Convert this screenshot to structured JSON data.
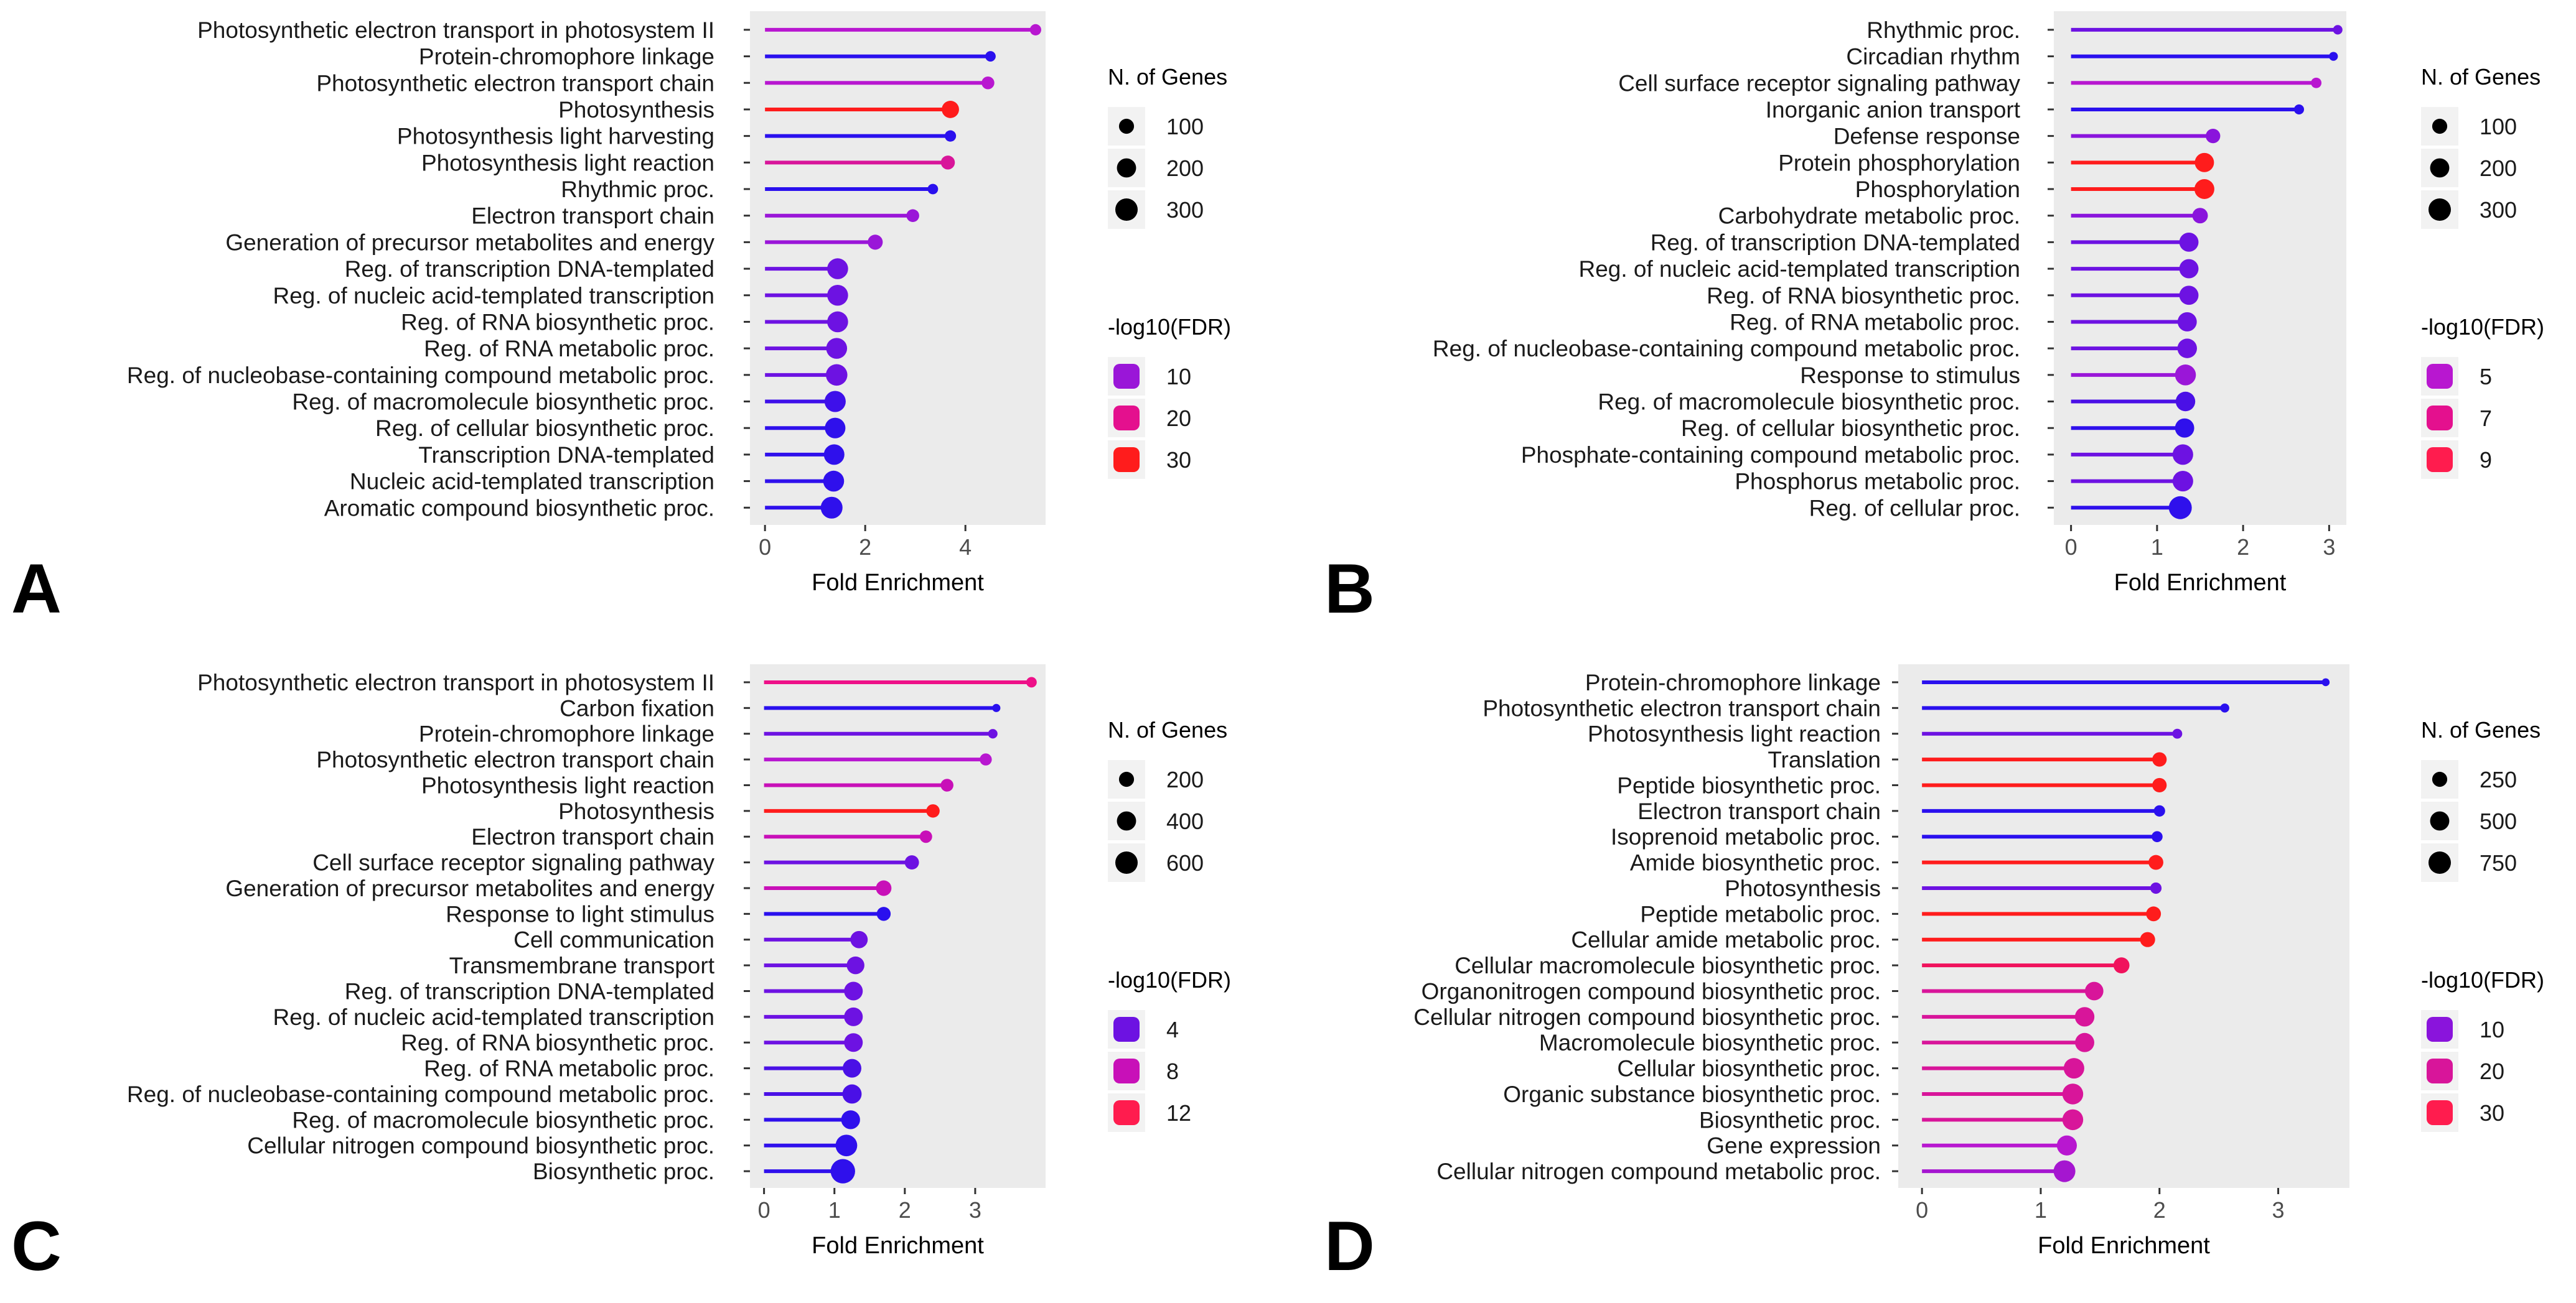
{
  "figure": {
    "x_axis_title": "Fold Enrichment",
    "size_legend_title": "N. of Genes",
    "color_legend_title": "-log10(FDR)"
  },
  "chart_data": [
    {
      "panel": "A",
      "type": "lollipop",
      "xlabel": "Fold Enrichment",
      "xlim": [
        -0.3,
        5.6
      ],
      "xticks": [
        "0",
        "2",
        "4"
      ],
      "xtick_values": [
        0,
        2,
        4
      ],
      "size_legend": {
        "title": "N. of Genes",
        "labels": [
          "100",
          "200",
          "300"
        ],
        "values": [
          100,
          200,
          300
        ]
      },
      "color_legend": {
        "title": "-log10(FDR)",
        "labels": [
          "10",
          "20",
          "30"
        ],
        "colors": [
          "#9a16d8",
          "#e4108e",
          "#ff1c1c"
        ]
      },
      "categories": [
        "Photosynthetic electron transport in photosystem II",
        "Protein-chromophore linkage",
        "Photosynthetic electron transport chain",
        "Photosynthesis",
        "Photosynthesis light harvesting",
        "Photosynthesis light reaction",
        "Rhythmic proc.",
        "Electron transport chain",
        "Generation of precursor metabolites and energy",
        "Reg. of transcription DNA-templated",
        "Reg. of nucleic acid-templated transcription",
        "Reg. of RNA biosynthetic proc.",
        "Reg. of RNA metabolic proc.",
        "Reg. of nucleobase-containing compound metabolic proc.",
        "Reg. of macromolecule biosynthetic proc.",
        "Reg. of cellular biosynthetic proc.",
        "Transcription DNA-templated",
        "Nucleic acid-templated transcription",
        "Aromatic compound biosynthetic proc."
      ],
      "values": [
        5.4,
        4.5,
        4.45,
        3.7,
        3.7,
        3.65,
        3.35,
        2.95,
        2.2,
        1.45,
        1.45,
        1.45,
        1.43,
        1.43,
        1.4,
        1.4,
        1.38,
        1.37,
        1.33
      ],
      "n_genes": [
        40,
        30,
        60,
        150,
        40,
        80,
        30,
        60,
        100,
        250,
        250,
        250,
        250,
        270,
        260,
        240,
        240,
        250,
        280
      ],
      "colors": [
        "#b817d0",
        "#2a10ee",
        "#b817d0",
        "#ff1c1c",
        "#2a10ee",
        "#d8159a",
        "#2a10ee",
        "#9a16d8",
        "#9a16d8",
        "#6d12e2",
        "#6d12e2",
        "#6d12e2",
        "#6d12e2",
        "#6d12e2",
        "#3e10ea",
        "#2f10ec",
        "#2f10ec",
        "#2f10ec",
        "#2f10ec"
      ]
    },
    {
      "panel": "B",
      "type": "lollipop",
      "xlabel": "Fold Enrichment",
      "xlim": [
        -0.2,
        3.2
      ],
      "xticks": [
        "0",
        "1",
        "2",
        "3"
      ],
      "xtick_values": [
        0,
        1,
        2,
        3
      ],
      "size_legend": {
        "title": "N. of Genes",
        "labels": [
          "100",
          "200",
          "300"
        ],
        "values": [
          100,
          200,
          300
        ]
      },
      "color_legend": {
        "title": "-log10(FDR)",
        "labels": [
          "5",
          "7",
          "9"
        ],
        "colors": [
          "#b817d0",
          "#e4108e",
          "#ff1c4e"
        ]
      },
      "categories": [
        "Rhythmic proc.",
        "Circadian rhythm",
        "Cell surface receptor signaling pathway",
        "Inorganic anion transport",
        "Defense response",
        "Protein phosphorylation",
        "Phosphorylation",
        "Carbohydrate metabolic proc.",
        "Reg. of transcription DNA-templated",
        "Reg. of nucleic acid-templated transcription",
        "Reg. of RNA biosynthetic proc.",
        "Reg. of RNA metabolic proc.",
        "Reg. of nucleobase-containing compound metabolic proc.",
        "Response to stimulus",
        "Reg. of macromolecule biosynthetic proc.",
        "Reg. of cellular biosynthetic proc.",
        "Phosphate-containing compound metabolic proc.",
        "Phosphorus metabolic proc.",
        "Reg. of cellular proc."
      ],
      "values": [
        3.1,
        3.05,
        2.85,
        2.65,
        1.65,
        1.55,
        1.55,
        1.5,
        1.37,
        1.37,
        1.37,
        1.35,
        1.35,
        1.33,
        1.33,
        1.32,
        1.3,
        1.3,
        1.27
      ],
      "n_genes": [
        20,
        15,
        30,
        25,
        90,
        200,
        220,
        110,
        200,
        200,
        200,
        200,
        210,
        250,
        210,
        200,
        240,
        240,
        320
      ],
      "colors": [
        "#6d12e2",
        "#2a10ee",
        "#b817d0",
        "#2a10ee",
        "#8a14dc",
        "#ff1c1c",
        "#ff1c1c",
        "#8a14dc",
        "#6d12e2",
        "#6d12e2",
        "#6d12e2",
        "#6d12e2",
        "#6d12e2",
        "#9a16d8",
        "#4a10e6",
        "#2f10ec",
        "#6d12e2",
        "#6d12e2",
        "#2f10ec"
      ]
    },
    {
      "panel": "C",
      "type": "lollipop",
      "xlabel": "Fold Enrichment",
      "xlim": [
        -0.2,
        4.0
      ],
      "xticks": [
        "0",
        "1",
        "2",
        "3"
      ],
      "xtick_values": [
        0,
        1,
        2,
        3
      ],
      "size_legend": {
        "title": "N. of Genes",
        "labels": [
          "200",
          "400",
          "600"
        ],
        "values": [
          200,
          400,
          600
        ]
      },
      "color_legend": {
        "title": "-log10(FDR)",
        "labels": [
          "4",
          "8",
          "12"
        ],
        "colors": [
          "#6d12e2",
          "#c810b8",
          "#ff1c4e"
        ]
      },
      "categories": [
        "Photosynthetic electron transport in photosystem II",
        "Carbon fixation",
        "Protein-chromophore linkage",
        "Photosynthetic electron transport chain",
        "Photosynthesis light reaction",
        "Photosynthesis",
        "Electron transport chain",
        "Cell surface receptor signaling pathway",
        "Generation of precursor metabolites and energy",
        "Response to light stimulus",
        "Cell communication",
        "Transmembrane transport",
        "Reg. of transcription DNA-templated",
        "Reg. of nucleic acid-templated transcription",
        "Reg. of RNA biosynthetic proc.",
        "Reg. of RNA metabolic proc.",
        "Reg. of nucleobase-containing compound metabolic proc.",
        "Reg. of macromolecule biosynthetic proc.",
        "Cellular nitrogen compound biosynthetic proc.",
        "Biosynthetic proc."
      ],
      "values": [
        3.8,
        3.3,
        3.25,
        3.15,
        2.6,
        2.4,
        2.3,
        2.1,
        1.7,
        1.7,
        1.35,
        1.3,
        1.27,
        1.27,
        1.27,
        1.25,
        1.25,
        1.23,
        1.17,
        1.12
      ],
      "n_genes": [
        60,
        20,
        40,
        100,
        120,
        140,
        110,
        170,
        220,
        160,
        300,
        320,
        370,
        370,
        370,
        370,
        400,
        380,
        550,
        750
      ],
      "colors": [
        "#ee1088",
        "#2a10ee",
        "#6d12e2",
        "#b817d0",
        "#c810b8",
        "#ff1c1c",
        "#c810b8",
        "#6d12e2",
        "#c810b8",
        "#2a10ee",
        "#6d12e2",
        "#6d12e2",
        "#6d12e2",
        "#6d12e2",
        "#6d12e2",
        "#4a10e6",
        "#4a10e6",
        "#2f10ec",
        "#2f10ec",
        "#2f10ec"
      ]
    },
    {
      "panel": "D",
      "type": "lollipop",
      "xlabel": "Fold Enrichment",
      "xlim": [
        -0.2,
        3.6
      ],
      "xticks": [
        "0",
        "1",
        "2",
        "3"
      ],
      "xtick_values": [
        0,
        1,
        2,
        3
      ],
      "size_legend": {
        "title": "N. of Genes",
        "labels": [
          "250",
          "500",
          "750"
        ],
        "values": [
          250,
          500,
          750
        ]
      },
      "color_legend": {
        "title": "-log10(FDR)",
        "labels": [
          "10",
          "20",
          "30"
        ],
        "colors": [
          "#8a14dc",
          "#d8159a",
          "#ff1c4e"
        ]
      },
      "categories": [
        "Protein-chromophore linkage",
        "Photosynthetic electron transport chain",
        "Photosynthesis light reaction",
        "Translation",
        "Peptide biosynthetic proc.",
        "Electron transport chain",
        "Isoprenoid metabolic proc.",
        "Amide biosynthetic proc.",
        "Photosynthesis",
        "Peptide metabolic proc.",
        "Cellular amide metabolic proc.",
        "Cellular macromolecule biosynthetic proc.",
        "Organonitrogen compound biosynthetic proc.",
        "Cellular nitrogen compound biosynthetic proc.",
        "Macromolecule biosynthetic proc.",
        "Cellular biosynthetic proc.",
        "Organic substance biosynthetic proc.",
        "Biosynthetic proc.",
        "Gene expression",
        "Cellular nitrogen compound metabolic proc."
      ],
      "values": [
        3.4,
        2.55,
        2.15,
        2.0,
        2.0,
        2.0,
        1.98,
        1.97,
        1.97,
        1.95,
        1.9,
        1.68,
        1.45,
        1.37,
        1.37,
        1.28,
        1.27,
        1.27,
        1.22,
        1.2
      ],
      "n_genes": [
        20,
        40,
        60,
        220,
        220,
        100,
        90,
        240,
        100,
        240,
        250,
        300,
        450,
        520,
        500,
        600,
        620,
        620,
        560,
        700
      ],
      "colors": [
        "#2a10ee",
        "#2a10ee",
        "#6d12e2",
        "#ff1c1c",
        "#ff1c1c",
        "#2a10ee",
        "#2a10ee",
        "#ff1c1c",
        "#6d12e2",
        "#ff1c1c",
        "#ff1c1c",
        "#f0125c",
        "#d8159a",
        "#d8159a",
        "#d8159a",
        "#d8159a",
        "#d8159a",
        "#d8159a",
        "#b817d0",
        "#a516d0"
      ]
    }
  ]
}
